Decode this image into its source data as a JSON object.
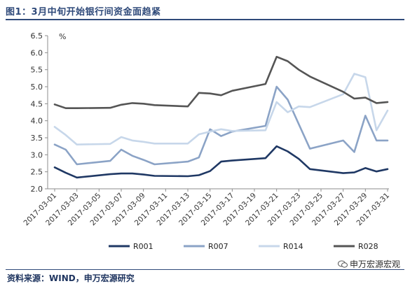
{
  "title": "图1：3月中旬开始银行间资金面趋紧",
  "source": "资料来源：WIND，申万宏源研究",
  "watermark": "申万宏源宏观",
  "colors": {
    "R001": "#1f3864",
    "R007": "#8ba3c6",
    "R014": "#c7d7ea",
    "R028": "#555555",
    "title": "#2f4a7a",
    "axis": "#8c8c8c"
  },
  "chart_data": {
    "type": "line",
    "unit": "%",
    "ylim": [
      2.0,
      6.5
    ],
    "yticks": [
      "2.0",
      "2.5",
      "3.0",
      "3.5",
      "4.0",
      "4.5",
      "5.0",
      "5.5",
      "6.0",
      "6.5"
    ],
    "xticks": [
      "2017-03-01",
      "2017-03-03",
      "2017-03-05",
      "2017-03-07",
      "2017-03-09",
      "2017-03-11",
      "2017-03-13",
      "2017-03-15",
      "2017-03-17",
      "2017-03-19",
      "2017-03-21",
      "2017-03-23",
      "2017-03-25",
      "2017-03-27",
      "2017-03-29",
      "2017-03-31"
    ],
    "x": [
      "2017-03-01",
      "2017-03-02",
      "2017-03-03",
      "2017-03-06",
      "2017-03-07",
      "2017-03-08",
      "2017-03-09",
      "2017-03-10",
      "2017-03-13",
      "2017-03-14",
      "2017-03-15",
      "2017-03-16",
      "2017-03-17",
      "2017-03-20",
      "2017-03-21",
      "2017-03-22",
      "2017-03-23",
      "2017-03-24",
      "2017-03-27",
      "2017-03-28",
      "2017-03-29",
      "2017-03-30",
      "2017-03-31"
    ],
    "series": [
      {
        "name": "R001",
        "values": [
          2.63,
          2.47,
          2.33,
          2.43,
          2.45,
          2.45,
          2.42,
          2.38,
          2.37,
          2.4,
          2.52,
          2.8,
          2.83,
          2.9,
          3.25,
          3.1,
          2.88,
          2.58,
          2.46,
          2.48,
          2.61,
          2.51,
          2.58
        ]
      },
      {
        "name": "R007",
        "values": [
          3.3,
          3.15,
          2.72,
          2.82,
          3.15,
          2.97,
          2.85,
          2.72,
          2.8,
          2.92,
          3.75,
          3.55,
          3.68,
          3.85,
          5.0,
          4.62,
          3.9,
          3.18,
          3.42,
          3.08,
          4.15,
          3.42,
          3.42
        ]
      },
      {
        "name": "R014",
        "values": [
          3.82,
          3.58,
          3.3,
          3.32,
          3.52,
          3.42,
          3.38,
          3.33,
          3.33,
          3.6,
          3.68,
          3.75,
          3.7,
          3.72,
          4.55,
          4.25,
          4.42,
          4.4,
          4.78,
          5.38,
          5.28,
          3.72,
          4.3
        ]
      },
      {
        "name": "R028",
        "values": [
          4.48,
          4.37,
          4.37,
          4.38,
          4.47,
          4.52,
          4.5,
          4.46,
          4.42,
          4.82,
          4.8,
          4.75,
          4.88,
          5.08,
          5.88,
          5.75,
          5.5,
          5.3,
          4.85,
          4.65,
          4.68,
          4.52,
          4.55
        ]
      }
    ],
    "legend": [
      "R001",
      "R007",
      "R014",
      "R028"
    ],
    "legend_position": "bottom",
    "grid": false
  }
}
